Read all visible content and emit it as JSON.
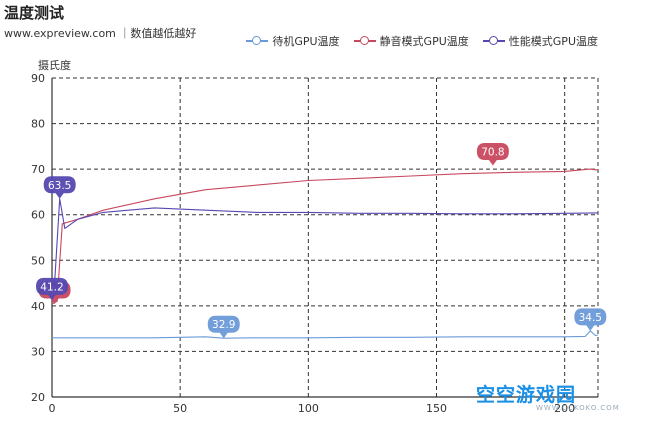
{
  "header": {
    "title": "温度测试",
    "subtitle": "www.expreview.com ｜数值越低越好"
  },
  "watermark": {
    "text": "空空游戏园",
    "url": "WWW.CCKOKO.COM"
  },
  "colors": {
    "idle": "#6a9ad8",
    "silent": "#c8485e",
    "perf": "#5548b0",
    "grid": "#333333"
  },
  "chart_data": {
    "type": "line",
    "ylabel": "摄氏度",
    "xlim": [
      0,
      213
    ],
    "ylim": [
      20,
      90
    ],
    "x_ticks": [
      0,
      50,
      100,
      150,
      200
    ],
    "y_ticks": [
      20,
      30,
      40,
      50,
      60,
      70,
      80,
      90
    ],
    "grid": true,
    "legend_position": "top-right",
    "series": [
      {
        "name": "待机GPU温度",
        "color": "#6a9ad8",
        "x": [
          0,
          20,
          40,
          60,
          67,
          80,
          100,
          120,
          140,
          160,
          180,
          200,
          208,
          210,
          212,
          213
        ],
        "y": [
          33,
          33,
          33,
          33.2,
          32.9,
          33,
          33,
          33.1,
          33.1,
          33.2,
          33.2,
          33.2,
          33.3,
          34.5,
          33.5,
          33.6
        ],
        "markers": [
          {
            "label": "32.9",
            "x": 67,
            "y": 32.9
          },
          {
            "label": "34.5",
            "x": 210,
            "y": 34.5
          }
        ]
      },
      {
        "name": "静音模式GPU温度",
        "color": "#c8485e",
        "x": [
          0,
          2,
          4,
          10,
          20,
          40,
          60,
          80,
          100,
          120,
          140,
          160,
          180,
          200,
          210,
          213
        ],
        "y": [
          40.4,
          41,
          58,
          59,
          61,
          63.5,
          65.5,
          66.5,
          67.5,
          68,
          68.5,
          69,
          69.3,
          69.5,
          70,
          69.8
        ],
        "markers": [
          {
            "label": "40.4",
            "x": 1,
            "y": 40.4
          },
          {
            "label": "70.8",
            "x": 172,
            "y": 70.8
          }
        ]
      },
      {
        "name": "性能模式GPU温度",
        "color": "#5548b0",
        "x": [
          0,
          1,
          3,
          5,
          10,
          20,
          40,
          60,
          80,
          100,
          120,
          140,
          160,
          180,
          200,
          213
        ],
        "y": [
          41.2,
          45,
          63.5,
          57,
          59,
          60.5,
          61.5,
          61,
          60.5,
          60.5,
          60.3,
          60.3,
          60.2,
          60.2,
          60.3,
          60.4
        ],
        "markers": [
          {
            "label": "63.5",
            "x": 3,
            "y": 63.5
          },
          {
            "label": "41.2",
            "x": 0,
            "y": 41.2
          }
        ]
      }
    ]
  }
}
